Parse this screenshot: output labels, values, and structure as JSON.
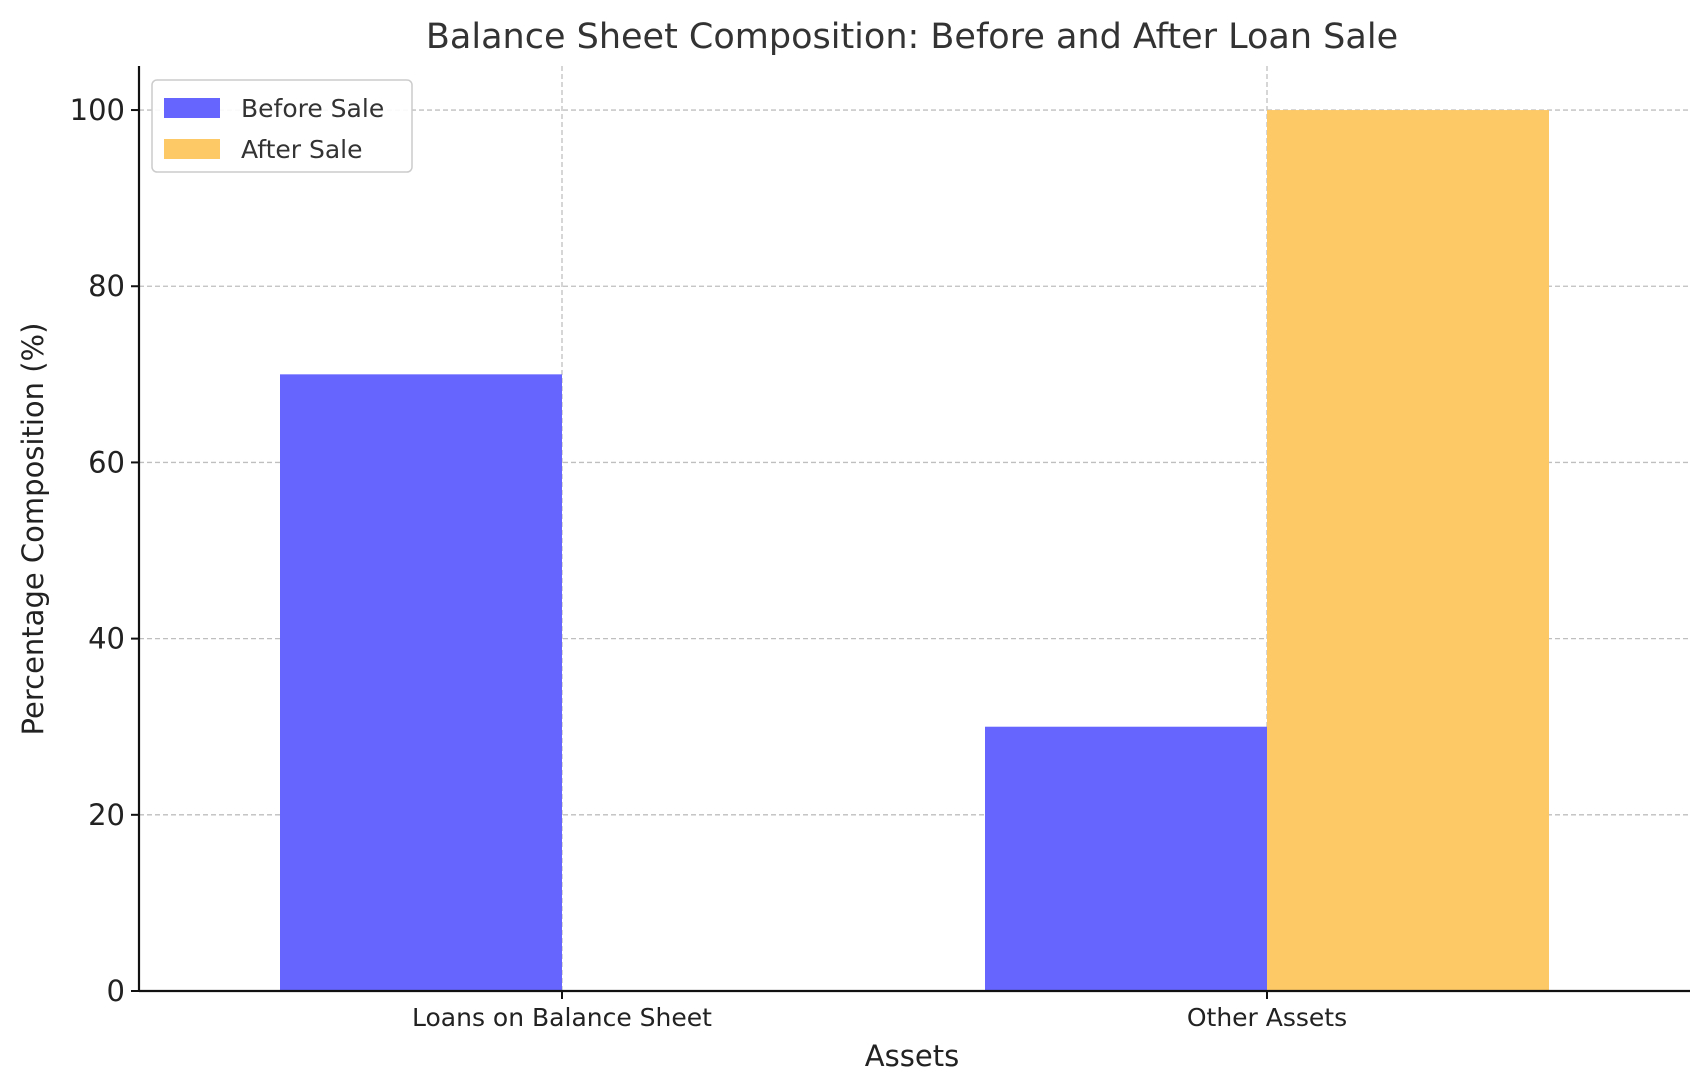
{
  "chart_data": {
    "type": "bar",
    "title": "Balance Sheet Composition: Before and After Loan Sale",
    "xlabel": "Assets",
    "ylabel": "Percentage Composition (%)",
    "categories": [
      "Loans on Balance Sheet",
      "Other Assets"
    ],
    "series": [
      {
        "name": "Before Sale",
        "values": [
          70,
          30
        ],
        "color": "#6666ff"
      },
      {
        "name": "After Sale",
        "values": [
          0,
          100
        ],
        "color": "#fdc866"
      }
    ],
    "ylim": [
      0,
      105
    ],
    "yticks": [
      0,
      20,
      40,
      60,
      80,
      100
    ],
    "grid": true,
    "legend_position": "top-left"
  }
}
